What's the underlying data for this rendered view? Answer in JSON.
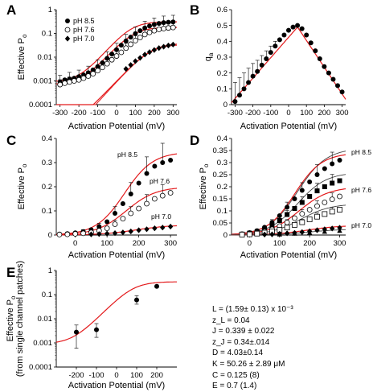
{
  "chart_data": [
    {
      "panel": "A",
      "type": "scatter",
      "yscale": "log",
      "xlabel": "Activation Potential (mV)",
      "ylabel": "Effective P",
      "ylabel_sub": "o",
      "xlim": [
        -320,
        320
      ],
      "ylim": [
        0.0001,
        1
      ],
      "xticks": [
        "-300",
        "-200",
        "-100",
        "0",
        "100",
        "200",
        "300"
      ],
      "yticks": [
        "0.0001",
        "0.001",
        "0.01",
        "0.1",
        "1"
      ],
      "legend": [
        "pH 8.5",
        "pH 7.6",
        "pH 7.0"
      ],
      "legend_position": "top-left",
      "series": [
        {
          "marker": "circle-filled",
          "x": [
            -300,
            -275,
            -250,
            -225,
            -200,
            -175,
            -150,
            -125,
            -100,
            -75,
            -50,
            -25,
            0,
            25,
            50,
            75,
            100,
            125,
            150,
            175,
            200,
            225,
            250,
            275,
            300
          ],
          "y": [
            0.0009,
            0.0011,
            0.0012,
            0.0013,
            0.0015,
            0.0018,
            0.0022,
            0.0029,
            0.004,
            0.0058,
            0.0089,
            0.0135,
            0.0205,
            0.032,
            0.048,
            0.07,
            0.098,
            0.13,
            0.17,
            0.205,
            0.235,
            0.262,
            0.283,
            0.295,
            0.305
          ]
        },
        {
          "marker": "circle-open",
          "x": [
            -300,
            -275,
            -250,
            -225,
            -200,
            -175,
            -150,
            -125,
            -100,
            -75,
            -50,
            -25,
            0,
            25,
            50,
            75,
            100,
            125,
            150,
            175,
            200,
            225,
            250,
            275,
            300
          ],
          "y": [
            0.0007,
            0.0008,
            0.0009,
            0.001,
            0.0011,
            0.0013,
            0.0016,
            0.002,
            0.0027,
            0.0037,
            0.0053,
            0.0078,
            0.0112,
            0.016,
            0.024,
            0.035,
            0.05,
            0.067,
            0.09,
            0.11,
            0.13,
            0.148,
            0.16,
            0.17,
            0.178
          ]
        },
        {
          "marker": "diamond-filled",
          "x": [
            50,
            75,
            100,
            125,
            150,
            175,
            200,
            225,
            250,
            275,
            300
          ],
          "y": [
            0.0032,
            0.0047,
            0.0068,
            0.0093,
            0.0128,
            0.0163,
            0.02,
            0.024,
            0.0275,
            0.031,
            0.034
          ]
        }
      ],
      "fit_curves": 4
    },
    {
      "panel": "B",
      "type": "scatter",
      "xlabel": "Activation Potential (mV)",
      "ylabel": "q",
      "ylabel_sub": "a",
      "xlim": [
        -320,
        320
      ],
      "ylim": [
        0,
        0.6
      ],
      "xticks": [
        "-300",
        "-200",
        "-100",
        "0",
        "100",
        "200",
        "300"
      ],
      "yticks": [
        "0",
        "0.1",
        "0.2",
        "0.3",
        "0.4",
        "0.5",
        "0.6"
      ],
      "x": [
        -300,
        -275,
        -250,
        -225,
        -200,
        -175,
        -150,
        -125,
        -100,
        -75,
        -50,
        -25,
        0,
        25,
        50,
        75,
        100,
        125,
        150,
        175,
        200,
        225,
        250,
        275,
        300
      ],
      "y": [
        0.02,
        0.06,
        0.1,
        0.14,
        0.18,
        0.21,
        0.25,
        0.29,
        0.33,
        0.37,
        0.41,
        0.44,
        0.47,
        0.49,
        0.5,
        0.48,
        0.44,
        0.39,
        0.34,
        0.29,
        0.24,
        0.2,
        0.16,
        0.12,
        0.08
      ],
      "fit_peak_x": 50,
      "fit_peak_y": 0.49
    },
    {
      "panel": "C",
      "type": "scatter",
      "xlabel": "Activation Potential (mV)",
      "ylabel": "Effective P",
      "ylabel_sub": "o",
      "xlim": [
        -60,
        320
      ],
      "ylim": [
        0,
        0.4
      ],
      "xticks": [
        "0",
        "100",
        "200",
        "300"
      ],
      "yticks": [
        "0",
        "0.1",
        "0.2",
        "0.3",
        "0.4"
      ],
      "annotations": [
        "pH 8.5",
        "pH 7.6",
        "pH 7.0"
      ],
      "series": [
        {
          "marker": "circle-filled",
          "x": [
            -50,
            -25,
            0,
            25,
            50,
            75,
            100,
            125,
            150,
            175,
            200,
            225,
            250,
            275,
            300
          ],
          "y": [
            0.004,
            0.006,
            0.009,
            0.014,
            0.022,
            0.035,
            0.055,
            0.09,
            0.13,
            0.17,
            0.215,
            0.255,
            0.285,
            0.3,
            0.31
          ]
        },
        {
          "marker": "circle-open",
          "x": [
            -50,
            -25,
            0,
            25,
            50,
            75,
            100,
            125,
            150,
            175,
            200,
            225,
            250,
            275,
            300
          ],
          "y": [
            0.002,
            0.003,
            0.005,
            0.007,
            0.011,
            0.018,
            0.028,
            0.045,
            0.068,
            0.09,
            0.11,
            0.13,
            0.15,
            0.163,
            0.175
          ]
        },
        {
          "marker": "diamond-filled",
          "x": [
            50,
            75,
            100,
            125,
            150,
            175,
            200,
            225,
            250,
            275,
            300
          ],
          "y": [
            0.003,
            0.004,
            0.006,
            0.008,
            0.011,
            0.015,
            0.02,
            0.024,
            0.028,
            0.031,
            0.035
          ]
        }
      ]
    },
    {
      "panel": "D",
      "type": "scatter",
      "xlabel": "Activation Potential (mV)",
      "ylabel": "Effective P",
      "ylabel_sub": "o",
      "xlim": [
        -60,
        320
      ],
      "ylim": [
        0,
        0.4
      ],
      "xticks": [
        "0",
        "100",
        "200",
        "300"
      ],
      "yticks": [
        "0",
        "0.05",
        "0.1",
        "0.15",
        "0.2",
        "0.25",
        "0.3",
        "0.35",
        "0.4"
      ],
      "annotations": [
        "pH 8.5",
        "pH 7.6",
        "pH 7.0"
      ],
      "series": [
        {
          "marker": "circle-filled",
          "x": [
            -25,
            0,
            25,
            50,
            75,
            100,
            125,
            150,
            175,
            200,
            225,
            250,
            275,
            300
          ],
          "y": [
            0.005,
            0.01,
            0.018,
            0.032,
            0.052,
            0.08,
            0.115,
            0.15,
            0.185,
            0.22,
            0.25,
            0.275,
            0.295,
            0.31
          ]
        },
        {
          "marker": "square-filled",
          "x": [
            -25,
            0,
            25,
            50,
            75,
            100,
            125,
            150,
            175,
            200,
            225,
            250,
            275,
            300
          ],
          "y": [
            0.004,
            0.008,
            0.014,
            0.025,
            0.04,
            0.06,
            0.085,
            0.11,
            0.135,
            0.16,
            0.183,
            0.2,
            0.215,
            0.225
          ]
        },
        {
          "marker": "circle-open",
          "x": [
            -25,
            0,
            25,
            50,
            75,
            100,
            125,
            150,
            175,
            200,
            225,
            250,
            275,
            300
          ],
          "y": [
            0.003,
            0.005,
            0.009,
            0.015,
            0.024,
            0.037,
            0.052,
            0.07,
            0.088,
            0.105,
            0.12,
            0.135,
            0.148,
            0.16
          ]
        },
        {
          "marker": "square-open",
          "x": [
            -25,
            0,
            25,
            50,
            75,
            100,
            125,
            150,
            175,
            200,
            225,
            250,
            275,
            300
          ],
          "y": [
            0.002,
            0.003,
            0.006,
            0.01,
            0.015,
            0.022,
            0.031,
            0.042,
            0.053,
            0.065,
            0.076,
            0.087,
            0.097,
            0.105
          ]
        },
        {
          "marker": "diamond-filled",
          "x": [
            50,
            75,
            100,
            125,
            150,
            175,
            200,
            225,
            250,
            275,
            300
          ],
          "y": [
            0.002,
            0.003,
            0.005,
            0.007,
            0.009,
            0.012,
            0.016,
            0.02,
            0.024,
            0.027,
            0.03
          ]
        },
        {
          "marker": "triangle-filled",
          "x": [
            100,
            150,
            200,
            250,
            300
          ],
          "y": [
            0.003,
            0.006,
            0.01,
            0.014,
            0.018
          ]
        }
      ]
    },
    {
      "panel": "E",
      "type": "scatter",
      "yscale": "log",
      "xlabel": "Activation Potential (mV)",
      "ylabel": "Effective P",
      "ylabel_sub": "o",
      "ylabel2": "(from single channel patches)",
      "xlim": [
        -300,
        300
      ],
      "ylim": [
        0.0001,
        1
      ],
      "xticks": [
        "-200",
        "-100",
        "0",
        "100",
        "200"
      ],
      "yticks": [
        "0.0001",
        "0.001",
        "0.01",
        "0.1",
        "1"
      ],
      "x": [
        -200,
        -100,
        100,
        200
      ],
      "y": [
        0.0028,
        0.0035,
        0.06,
        0.22
      ],
      "err_lo": [
        0.0006,
        0.0017,
        0.04,
        0.2
      ],
      "err_hi": [
        0.0055,
        0.0063,
        0.09,
        0.24
      ]
    }
  ],
  "parameters": [
    "L =  (1.59± 0.13) x 10⁻³",
    "z_L =  0.04",
    "J = 0.339 ± 0.022",
    "z_J = 0.34±.014",
    "D = 4.03±0.14",
    "K = 50.26 ± 2.89 μM",
    "C = 0.125 (8)",
    "E = 0.7 (1.4)"
  ],
  "colors": {
    "fit": "#e31a1c",
    "data": "#000000",
    "model": "#444444"
  }
}
